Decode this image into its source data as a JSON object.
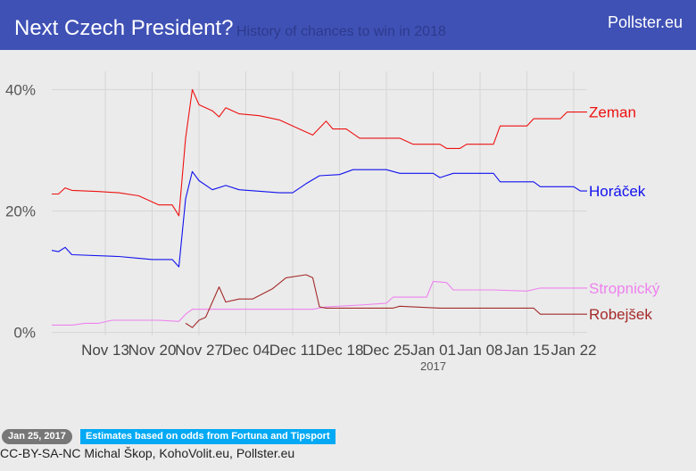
{
  "header": {
    "title": "Next Czech President?",
    "subtitle": "History of chances to win in 2018",
    "brand": "Pollster.eu"
  },
  "footer": {
    "date_badge": "Jan 25, 2017",
    "note_badge": "Estimates based on odds from Fortuna and Tipsport",
    "credit": "CC-BY-SA-NC Michal Škop, KohoVolit.eu, Pollster.eu"
  },
  "chart_data": {
    "type": "line",
    "x_start": "2016-11-05",
    "x_end": "2017-01-24",
    "ylim": [
      -0.5,
      43
    ],
    "y_ticks": [
      0,
      20,
      40
    ],
    "y_tick_labels": [
      "0%",
      "20%",
      "40%"
    ],
    "x_ticks": [
      {
        "label": "Nov 13",
        "date": "2016-11-13"
      },
      {
        "label": "Nov 20",
        "date": "2016-11-20"
      },
      {
        "label": "Nov 27",
        "date": "2016-11-27"
      },
      {
        "label": "Dec 04",
        "date": "2016-12-04"
      },
      {
        "label": "Dec 11",
        "date": "2016-12-11"
      },
      {
        "label": "Dec 18",
        "date": "2016-12-18"
      },
      {
        "label": "Dec 25",
        "date": "2016-12-25"
      },
      {
        "label": "Jan 01",
        "date": "2017-01-01"
      },
      {
        "label": "Jan 08",
        "date": "2017-01-08"
      },
      {
        "label": "Jan 15",
        "date": "2017-01-15"
      },
      {
        "label": "Jan 22",
        "date": "2017-01-22"
      }
    ],
    "year_label": "2017",
    "year_label_date": "2017-01-01",
    "grid": true,
    "series": [
      {
        "name": "Zeman",
        "color": "#ee1111",
        "points": [
          [
            "2016-11-05",
            22.8
          ],
          [
            "2016-11-06",
            22.8
          ],
          [
            "2016-11-07",
            23.8
          ],
          [
            "2016-11-08",
            23.4
          ],
          [
            "2016-11-12",
            23.2
          ],
          [
            "2016-11-15",
            23.0
          ],
          [
            "2016-11-18",
            22.5
          ],
          [
            "2016-11-21",
            21.0
          ],
          [
            "2016-11-23",
            21.0
          ],
          [
            "2016-11-24",
            19.2
          ],
          [
            "2016-11-25",
            32.0
          ],
          [
            "2016-11-26",
            40.0
          ],
          [
            "2016-11-27",
            37.5
          ],
          [
            "2016-11-29",
            36.5
          ],
          [
            "2016-11-30",
            35.5
          ],
          [
            "2016-12-01",
            37.0
          ],
          [
            "2016-12-03",
            36.0
          ],
          [
            "2016-12-06",
            35.7
          ],
          [
            "2016-12-09",
            35.0
          ],
          [
            "2016-12-12",
            33.5
          ],
          [
            "2016-12-14",
            32.5
          ],
          [
            "2016-12-16",
            34.8
          ],
          [
            "2016-12-17",
            33.5
          ],
          [
            "2016-12-19",
            33.5
          ],
          [
            "2016-12-21",
            32.0
          ],
          [
            "2016-12-27",
            32.0
          ],
          [
            "2016-12-29",
            31.0
          ],
          [
            "2017-01-02",
            31.0
          ],
          [
            "2017-01-03",
            30.3
          ],
          [
            "2017-01-05",
            30.3
          ],
          [
            "2017-01-06",
            31.0
          ],
          [
            "2017-01-10",
            31.0
          ],
          [
            "2017-01-11",
            34.0
          ],
          [
            "2017-01-15",
            34.0
          ],
          [
            "2017-01-16",
            35.2
          ],
          [
            "2017-01-20",
            35.2
          ],
          [
            "2017-01-21",
            36.3
          ],
          [
            "2017-01-24",
            36.3
          ]
        ]
      },
      {
        "name": "Horáček",
        "color": "#1111ee",
        "points": [
          [
            "2016-11-05",
            13.5
          ],
          [
            "2016-11-06",
            13.3
          ],
          [
            "2016-11-07",
            14.0
          ],
          [
            "2016-11-08",
            12.8
          ],
          [
            "2016-11-15",
            12.5
          ],
          [
            "2016-11-18",
            12.2
          ],
          [
            "2016-11-20",
            12.0
          ],
          [
            "2016-11-23",
            12.0
          ],
          [
            "2016-11-24",
            10.8
          ],
          [
            "2016-11-25",
            22.0
          ],
          [
            "2016-11-26",
            26.5
          ],
          [
            "2016-11-27",
            25.0
          ],
          [
            "2016-11-29",
            23.5
          ],
          [
            "2016-12-01",
            24.2
          ],
          [
            "2016-12-03",
            23.5
          ],
          [
            "2016-12-09",
            23.0
          ],
          [
            "2016-12-11",
            23.0
          ],
          [
            "2016-12-13",
            24.5
          ],
          [
            "2016-12-15",
            25.8
          ],
          [
            "2016-12-18",
            26.0
          ],
          [
            "2016-12-20",
            26.8
          ],
          [
            "2016-12-25",
            26.8
          ],
          [
            "2016-12-27",
            26.2
          ],
          [
            "2017-01-01",
            26.2
          ],
          [
            "2017-01-02",
            25.5
          ],
          [
            "2017-01-04",
            26.2
          ],
          [
            "2017-01-10",
            26.2
          ],
          [
            "2017-01-11",
            24.8
          ],
          [
            "2017-01-16",
            24.8
          ],
          [
            "2017-01-17",
            24.0
          ],
          [
            "2017-01-22",
            24.0
          ],
          [
            "2017-01-23",
            23.3
          ],
          [
            "2017-01-24",
            23.3
          ]
        ]
      },
      {
        "name": "Stropnický",
        "color": "#ee82ee",
        "points": [
          [
            "2016-11-05",
            1.2
          ],
          [
            "2016-11-06",
            1.2
          ],
          [
            "2016-11-08",
            1.2
          ],
          [
            "2016-11-10",
            1.5
          ],
          [
            "2016-11-12",
            1.5
          ],
          [
            "2016-11-14",
            2.0
          ],
          [
            "2016-11-21",
            2.0
          ],
          [
            "2016-11-24",
            1.8
          ],
          [
            "2016-11-25",
            3.0
          ],
          [
            "2016-11-26",
            3.8
          ],
          [
            "2016-12-08",
            3.8
          ],
          [
            "2016-12-14",
            3.8
          ],
          [
            "2016-12-16",
            4.2
          ],
          [
            "2016-12-21",
            4.5
          ],
          [
            "2016-12-25",
            4.8
          ],
          [
            "2016-12-26",
            5.8
          ],
          [
            "2016-12-31",
            5.8
          ],
          [
            "2017-01-01",
            8.4
          ],
          [
            "2017-01-03",
            8.2
          ],
          [
            "2017-01-04",
            7.0
          ],
          [
            "2017-01-10",
            7.0
          ],
          [
            "2017-01-15",
            6.8
          ],
          [
            "2017-01-17",
            7.3
          ],
          [
            "2017-01-24",
            7.3
          ]
        ]
      },
      {
        "name": "Robejšek",
        "color": "#a52a2a",
        "points": [
          [
            "2016-11-25",
            1.5
          ],
          [
            "2016-11-26",
            0.8
          ],
          [
            "2016-11-27",
            2.0
          ],
          [
            "2016-11-28",
            2.5
          ],
          [
            "2016-11-30",
            7.5
          ],
          [
            "2016-12-01",
            5.0
          ],
          [
            "2016-12-03",
            5.5
          ],
          [
            "2016-12-05",
            5.5
          ],
          [
            "2016-12-08",
            7.2
          ],
          [
            "2016-12-10",
            9.0
          ],
          [
            "2016-12-13",
            9.5
          ],
          [
            "2016-12-14",
            9.0
          ],
          [
            "2016-12-15",
            4.2
          ],
          [
            "2016-12-16",
            4.0
          ],
          [
            "2016-12-26",
            4.0
          ],
          [
            "2016-12-27",
            4.3
          ],
          [
            "2017-01-02",
            4.0
          ],
          [
            "2017-01-16",
            4.0
          ],
          [
            "2017-01-17",
            3.0
          ],
          [
            "2017-01-24",
            3.0
          ]
        ]
      }
    ]
  }
}
